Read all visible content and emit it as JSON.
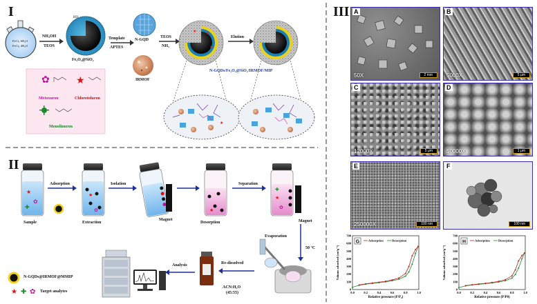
{
  "panels": {
    "one": "I",
    "two": "II",
    "three": "III"
  },
  "section1": {
    "flask_text": [
      "FeCl₃·6H₂O",
      "FeCl₂·4H₂O"
    ],
    "step1_top": "NH₄OH",
    "step1_bottom": "TEOS",
    "core_label": "Fe₃O₄@SiO₂",
    "oh": "HO",
    "step2_top": "Template",
    "step2_bottom": "APTES",
    "ngqd": "N-GQD",
    "irmof": "IRMOF",
    "step3_top": "TEOS",
    "step3_bottom": "NH₃",
    "step4": "Elution",
    "composite": "N-GQDs/Fe₃O₄@SiO₂/IRMOF/MIP",
    "analytes": [
      "Metoxuron",
      "Chlorotoluron",
      "Monolinuron"
    ]
  },
  "section2": {
    "sample": "Sample",
    "adsorption": "Adsorption",
    "extraction": "Extraction",
    "isolation": "Isolation",
    "magnet": "Magnet",
    "desorption": "Desorption",
    "separation": "Separation",
    "magnet2": "Magnet",
    "evaporation": "Evaporation",
    "temp": "50 °C",
    "redissolved": "Re-dissolved",
    "solvent": "ACN:H₂O",
    "ratio": "(45:55)",
    "analysis": "Analysis",
    "legend_particle": "N-GQDs@IRMOF@MMIP",
    "legend_targets": "Target analytes"
  },
  "section3": {
    "sem": [
      {
        "tag": "A",
        "mag": "50X",
        "scale": "2 mm"
      },
      {
        "tag": "B",
        "mag": "5000X",
        "scale": "5 μm"
      },
      {
        "tag": "C",
        "mag": "12000X",
        "scale": "5 μm"
      },
      {
        "tag": "D",
        "mag": "50000X",
        "scale": "1 μm"
      },
      {
        "tag": "E",
        "mag": "250000X",
        "scale": "100 nm"
      },
      {
        "tag": "F",
        "mag": "",
        "scale": "100 nm"
      }
    ],
    "bet": [
      {
        "tag": "G",
        "ylabel": "Volume adsorbed (cm³g⁻¹)",
        "xlabel": "Relative pressure (P/P₀)",
        "legend": [
          "Adsorption",
          "Desorption"
        ]
      },
      {
        "tag": "H",
        "ylabel": "Volume adsorbed (cm³g⁻¹)",
        "xlabel": "Relative pressure (P/P0)",
        "legend": [
          "Adsorption",
          "Desorption"
        ]
      }
    ],
    "y_ticks": [
      "0",
      "100",
      "200",
      "300",
      "400",
      "500",
      "600",
      "700"
    ],
    "x_ticks": [
      "0.0",
      "0.2",
      "0.4",
      "0.6",
      "0.8",
      "1.0"
    ]
  }
}
